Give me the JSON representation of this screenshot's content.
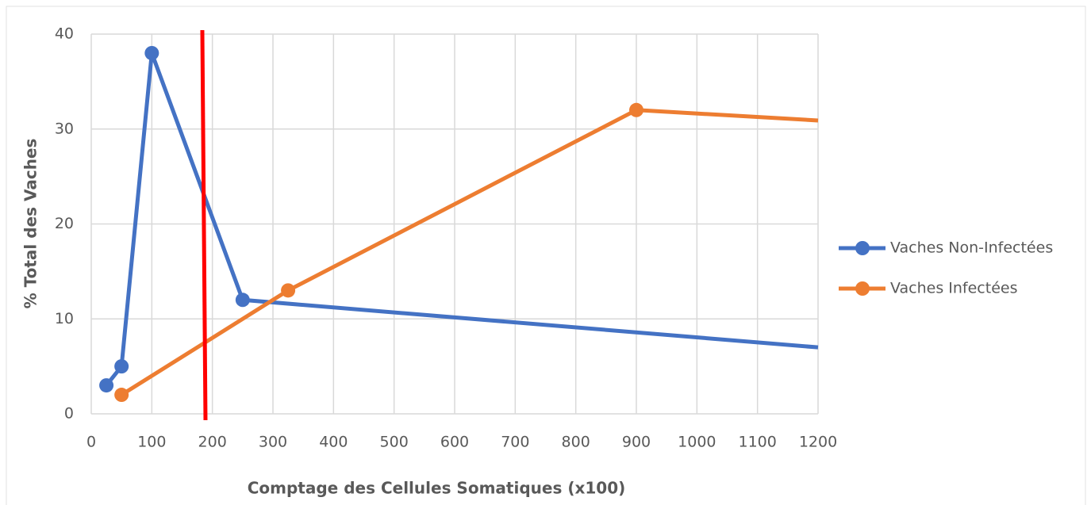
{
  "chart_data": {
    "type": "line",
    "xlabel": "Comptage des Cellules Somatiques (x100)",
    "ylabel": "% Total des Vaches",
    "xlim": [
      0,
      1200
    ],
    "xticks": [
      0,
      100,
      200,
      300,
      400,
      500,
      600,
      700,
      800,
      900,
      1000,
      1100,
      1200
    ],
    "ylim": [
      0,
      40
    ],
    "yticks": [
      0,
      10,
      20,
      30,
      40
    ],
    "grid": true,
    "legend": "right",
    "series": [
      {
        "name": "Vaches Non-Infectées",
        "color": "#4472c4",
        "x": [
          25,
          50,
          100,
          250,
          1200
        ],
        "values": [
          3,
          5,
          38,
          12,
          7
        ]
      },
      {
        "name": "Vaches Infectées",
        "color": "#ed7d31",
        "x": [
          50,
          325,
          900,
          1200
        ],
        "values": [
          2,
          13,
          32,
          30.9
        ]
      }
    ],
    "threshold": {
      "x": 186,
      "color": "#ff0000"
    }
  }
}
